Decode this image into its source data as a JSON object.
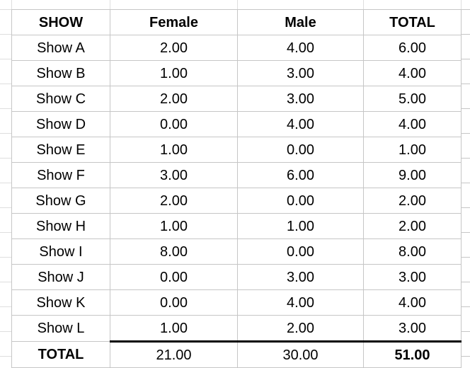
{
  "sheet": {
    "columns": [
      "SHOW",
      "Female",
      "Male",
      "TOTAL"
    ],
    "rows": [
      {
        "label": "Show A",
        "female": "2.00",
        "male": "4.00",
        "total": "6.00"
      },
      {
        "label": "Show B",
        "female": "1.00",
        "male": "3.00",
        "total": "4.00"
      },
      {
        "label": "Show C",
        "female": "2.00",
        "male": "3.00",
        "total": "5.00"
      },
      {
        "label": "Show D",
        "female": "0.00",
        "male": "4.00",
        "total": "4.00"
      },
      {
        "label": "Show E",
        "female": "1.00",
        "male": "0.00",
        "total": "1.00"
      },
      {
        "label": "Show F",
        "female": "3.00",
        "male": "6.00",
        "total": "9.00"
      },
      {
        "label": "Show G",
        "female": "2.00",
        "male": "0.00",
        "total": "2.00"
      },
      {
        "label": "Show H",
        "female": "1.00",
        "male": "1.00",
        "total": "2.00"
      },
      {
        "label": "Show I",
        "female": "8.00",
        "male": "0.00",
        "total": "8.00"
      },
      {
        "label": "Show J",
        "female": "0.00",
        "male": "3.00",
        "total": "3.00"
      },
      {
        "label": "Show K",
        "female": "0.00",
        "male": "4.00",
        "total": "4.00"
      },
      {
        "label": "Show L",
        "female": "1.00",
        "male": "2.00",
        "total": "3.00"
      }
    ],
    "total_row": {
      "label": "TOTAL",
      "female": "21.00",
      "male": "30.00",
      "total": "51.00"
    }
  },
  "colors": {
    "sheet_gridline": "#dedede",
    "table_border": "#c6c6c6",
    "total_rule": "#000000",
    "text": "#000000",
    "background": "#ffffff"
  }
}
